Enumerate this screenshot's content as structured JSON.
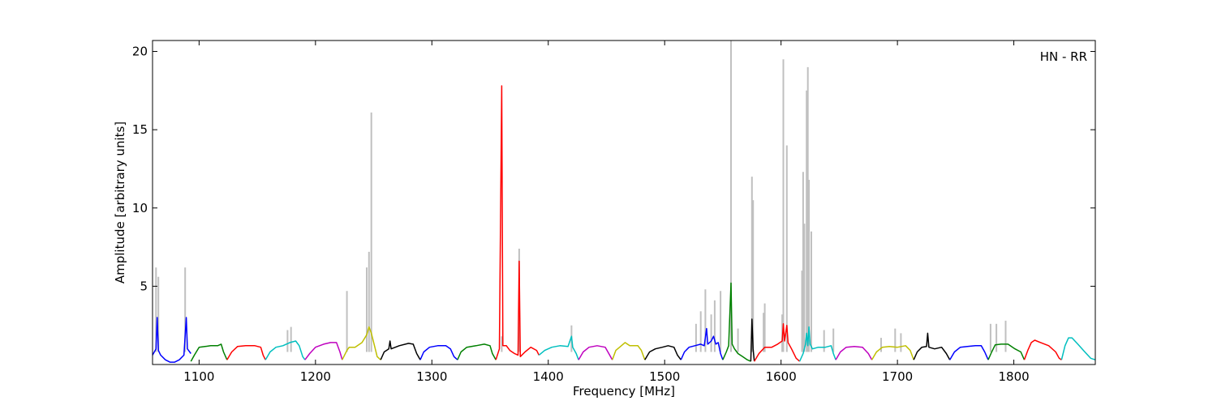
{
  "chart_data": {
    "type": "line",
    "title": "",
    "xlabel": "Frequency [MHz]",
    "ylabel": "Amplitude [arbitrary units]",
    "annotation": "HN - RR",
    "legend": "none",
    "grid": false,
    "xlim": [
      1060,
      1870
    ],
    "ylim": [
      0,
      20.7
    ],
    "x_ticks": [
      1100,
      1200,
      1300,
      1400,
      1500,
      1600,
      1700,
      1800
    ],
    "y_ticks": [
      5,
      10,
      15,
      20
    ],
    "background_color": "#c0c0c0",
    "background_spikes": [
      [
        1063,
        6.2
      ],
      [
        1065,
        5.6
      ],
      [
        1088,
        6.2
      ],
      [
        1176,
        2.2
      ],
      [
        1179,
        2.4
      ],
      [
        1227,
        4.7
      ],
      [
        1244,
        6.2
      ],
      [
        1246,
        7.2
      ],
      [
        1248,
        16.1
      ],
      [
        1360,
        1.8
      ],
      [
        1375,
        7.4
      ],
      [
        1420,
        2.5
      ],
      [
        1527,
        2.6
      ],
      [
        1531,
        3.4
      ],
      [
        1535,
        4.8
      ],
      [
        1540,
        3.2
      ],
      [
        1543,
        4.1
      ],
      [
        1548,
        4.7
      ],
      [
        1557,
        20.7
      ],
      [
        1563,
        2.3
      ],
      [
        1575,
        12.0
      ],
      [
        1576,
        10.5
      ],
      [
        1585,
        3.3
      ],
      [
        1586,
        3.9
      ],
      [
        1601,
        3.2
      ],
      [
        1602,
        19.5
      ],
      [
        1605,
        14.0
      ],
      [
        1618,
        6.0
      ],
      [
        1619,
        12.3
      ],
      [
        1620,
        9.0
      ],
      [
        1622,
        17.5
      ],
      [
        1623,
        19.0
      ],
      [
        1624,
        11.8
      ],
      [
        1626,
        8.5
      ],
      [
        1637,
        2.2
      ],
      [
        1645,
        2.3
      ],
      [
        1686,
        1.7
      ],
      [
        1698,
        2.3
      ],
      [
        1703,
        2.0
      ],
      [
        1780,
        2.6
      ],
      [
        1785,
        2.6
      ],
      [
        1793,
        2.8
      ]
    ],
    "series": [
      {
        "color": "#0000ff",
        "points": [
          [
            1060,
            0.6
          ],
          [
            1063,
            1.0
          ],
          [
            1064,
            3.0
          ],
          [
            1065,
            0.9
          ],
          [
            1067,
            0.6
          ],
          [
            1071,
            0.3
          ],
          [
            1075,
            0.15
          ],
          [
            1079,
            0.15
          ],
          [
            1083,
            0.3
          ],
          [
            1087,
            0.6
          ],
          [
            1089,
            3.0
          ],
          [
            1090,
            1.0
          ],
          [
            1093,
            0.7
          ]
        ]
      },
      {
        "color": "#008000",
        "points": [
          [
            1093,
            0.2
          ],
          [
            1096,
            0.6
          ],
          [
            1100,
            1.1
          ],
          [
            1105,
            1.15
          ],
          [
            1110,
            1.2
          ],
          [
            1116,
            1.2
          ],
          [
            1119,
            1.3
          ],
          [
            1121,
            0.8
          ],
          [
            1124,
            0.3
          ]
        ]
      },
      {
        "color": "#ff0000",
        "points": [
          [
            1124,
            0.3
          ],
          [
            1128,
            0.8
          ],
          [
            1133,
            1.15
          ],
          [
            1140,
            1.2
          ],
          [
            1148,
            1.2
          ],
          [
            1153,
            1.1
          ],
          [
            1155,
            0.6
          ],
          [
            1157,
            0.3
          ]
        ]
      },
      {
        "color": "#00bfbf",
        "points": [
          [
            1157,
            0.3
          ],
          [
            1161,
            0.8
          ],
          [
            1166,
            1.1
          ],
          [
            1172,
            1.2
          ],
          [
            1178,
            1.4
          ],
          [
            1183,
            1.5
          ],
          [
            1186,
            1.2
          ],
          [
            1189,
            0.5
          ],
          [
            1191,
            0.3
          ]
        ]
      },
      {
        "color": "#bf00bf",
        "points": [
          [
            1191,
            0.3
          ],
          [
            1195,
            0.7
          ],
          [
            1200,
            1.1
          ],
          [
            1207,
            1.3
          ],
          [
            1213,
            1.4
          ],
          [
            1218,
            1.4
          ],
          [
            1221,
            0.8
          ],
          [
            1223,
            0.3
          ]
        ]
      },
      {
        "color": "#bfbf00",
        "points": [
          [
            1223,
            0.3
          ],
          [
            1227,
            0.9
          ],
          [
            1229,
            1.1
          ],
          [
            1234,
            1.1
          ],
          [
            1240,
            1.4
          ],
          [
            1244,
            1.9
          ],
          [
            1246,
            2.4
          ],
          [
            1248,
            2.0
          ],
          [
            1250,
            1.4
          ],
          [
            1253,
            0.5
          ],
          [
            1256,
            0.3
          ]
        ]
      },
      {
        "color": "#000000",
        "points": [
          [
            1256,
            0.3
          ],
          [
            1259,
            0.8
          ],
          [
            1263,
            1.0
          ],
          [
            1264,
            1.5
          ],
          [
            1265,
            1.0
          ],
          [
            1272,
            1.2
          ],
          [
            1280,
            1.35
          ],
          [
            1284,
            1.3
          ],
          [
            1287,
            0.7
          ],
          [
            1290,
            0.3
          ]
        ]
      },
      {
        "color": "#0000ff",
        "points": [
          [
            1290,
            0.3
          ],
          [
            1293,
            0.8
          ],
          [
            1298,
            1.1
          ],
          [
            1305,
            1.2
          ],
          [
            1312,
            1.2
          ],
          [
            1316,
            1.0
          ],
          [
            1319,
            0.5
          ],
          [
            1322,
            0.3
          ]
        ]
      },
      {
        "color": "#008000",
        "points": [
          [
            1322,
            0.3
          ],
          [
            1325,
            0.8
          ],
          [
            1330,
            1.1
          ],
          [
            1338,
            1.2
          ],
          [
            1345,
            1.3
          ],
          [
            1350,
            1.2
          ],
          [
            1352,
            0.7
          ],
          [
            1355,
            0.3
          ]
        ]
      },
      {
        "color": "#ff0000",
        "points": [
          [
            1355,
            0.3
          ],
          [
            1358,
            1.0
          ],
          [
            1360,
            17.8
          ],
          [
            1361,
            1.2
          ],
          [
            1364,
            1.2
          ],
          [
            1367,
            0.9
          ],
          [
            1371,
            0.7
          ],
          [
            1374,
            0.6
          ],
          [
            1375,
            6.6
          ],
          [
            1376,
            0.5
          ],
          [
            1380,
            0.8
          ],
          [
            1385,
            1.1
          ],
          [
            1390,
            0.9
          ],
          [
            1392,
            0.6
          ]
        ]
      },
      {
        "color": "#00bfbf",
        "points": [
          [
            1392,
            0.6
          ],
          [
            1397,
            0.9
          ],
          [
            1403,
            1.1
          ],
          [
            1410,
            1.2
          ],
          [
            1417,
            1.15
          ],
          [
            1420,
            1.8
          ],
          [
            1421,
            1.1
          ],
          [
            1424,
            0.7
          ],
          [
            1426,
            0.3
          ]
        ]
      },
      {
        "color": "#bf00bf",
        "points": [
          [
            1426,
            0.3
          ],
          [
            1430,
            0.8
          ],
          [
            1435,
            1.1
          ],
          [
            1442,
            1.2
          ],
          [
            1449,
            1.1
          ],
          [
            1452,
            0.7
          ],
          [
            1455,
            0.3
          ]
        ]
      },
      {
        "color": "#bfbf00",
        "points": [
          [
            1455,
            0.3
          ],
          [
            1458,
            0.9
          ],
          [
            1462,
            1.15
          ],
          [
            1466,
            1.4
          ],
          [
            1470,
            1.2
          ],
          [
            1477,
            1.2
          ],
          [
            1480,
            0.9
          ],
          [
            1483,
            0.3
          ]
        ]
      },
      {
        "color": "#000000",
        "points": [
          [
            1483,
            0.3
          ],
          [
            1487,
            0.8
          ],
          [
            1492,
            1.0
          ],
          [
            1498,
            1.1
          ],
          [
            1503,
            1.2
          ],
          [
            1508,
            1.1
          ],
          [
            1511,
            0.6
          ],
          [
            1514,
            0.3
          ]
        ]
      },
      {
        "color": "#0000ff",
        "points": [
          [
            1514,
            0.3
          ],
          [
            1517,
            0.8
          ],
          [
            1521,
            1.1
          ],
          [
            1526,
            1.2
          ],
          [
            1531,
            1.3
          ],
          [
            1534,
            1.2
          ],
          [
            1536,
            2.3
          ],
          [
            1537,
            1.3
          ],
          [
            1540,
            1.5
          ],
          [
            1542,
            1.8
          ],
          [
            1544,
            1.3
          ],
          [
            1546,
            1.4
          ],
          [
            1548,
            0.7
          ],
          [
            1550,
            0.3
          ]
        ]
      },
      {
        "color": "#008000",
        "points": [
          [
            1550,
            0.3
          ],
          [
            1553,
            0.8
          ],
          [
            1555,
            1.2
          ],
          [
            1557,
            5.2
          ],
          [
            1558,
            1.3
          ],
          [
            1560,
            1.0
          ],
          [
            1563,
            0.7
          ],
          [
            1567,
            0.5
          ],
          [
            1571,
            0.3
          ],
          [
            1574,
            0.2
          ]
        ]
      },
      {
        "color": "#000000",
        "points": [
          [
            1574,
            0.2
          ],
          [
            1575,
            2.9
          ],
          [
            1576,
            1.0
          ],
          [
            1577,
            0.2
          ]
        ]
      },
      {
        "color": "#ff0000",
        "points": [
          [
            1577,
            0.2
          ],
          [
            1581,
            0.7
          ],
          [
            1586,
            1.1
          ],
          [
            1592,
            1.1
          ],
          [
            1597,
            1.3
          ],
          [
            1601,
            1.5
          ],
          [
            1602,
            2.6
          ],
          [
            1603,
            1.5
          ],
          [
            1605,
            2.5
          ],
          [
            1606,
            1.4
          ],
          [
            1609,
            1.0
          ],
          [
            1613,
            0.4
          ],
          [
            1616,
            0.2
          ]
        ]
      },
      {
        "color": "#00bfbf",
        "points": [
          [
            1616,
            0.2
          ],
          [
            1619,
            0.7
          ],
          [
            1621,
            1.3
          ],
          [
            1622,
            2.0
          ],
          [
            1623,
            1.2
          ],
          [
            1624,
            2.4
          ],
          [
            1625,
            1.3
          ],
          [
            1627,
            1.0
          ],
          [
            1632,
            1.1
          ],
          [
            1638,
            1.1
          ],
          [
            1643,
            1.2
          ],
          [
            1645,
            0.7
          ],
          [
            1647,
            0.3
          ]
        ]
      },
      {
        "color": "#bf00bf",
        "points": [
          [
            1647,
            0.3
          ],
          [
            1651,
            0.8
          ],
          [
            1656,
            1.1
          ],
          [
            1663,
            1.15
          ],
          [
            1670,
            1.1
          ],
          [
            1675,
            0.7
          ],
          [
            1678,
            0.3
          ]
        ]
      },
      {
        "color": "#bfbf00",
        "points": [
          [
            1678,
            0.3
          ],
          [
            1682,
            0.8
          ],
          [
            1687,
            1.1
          ],
          [
            1693,
            1.15
          ],
          [
            1700,
            1.1
          ],
          [
            1707,
            1.2
          ],
          [
            1711,
            0.9
          ],
          [
            1714,
            0.3
          ]
        ]
      },
      {
        "color": "#000000",
        "points": [
          [
            1714,
            0.3
          ],
          [
            1717,
            0.8
          ],
          [
            1721,
            1.1
          ],
          [
            1725,
            1.15
          ],
          [
            1726,
            2.0
          ],
          [
            1727,
            1.1
          ],
          [
            1732,
            1.0
          ],
          [
            1738,
            1.1
          ],
          [
            1742,
            0.7
          ],
          [
            1745,
            0.3
          ]
        ]
      },
      {
        "color": "#0000ff",
        "points": [
          [
            1745,
            0.3
          ],
          [
            1749,
            0.8
          ],
          [
            1754,
            1.1
          ],
          [
            1760,
            1.15
          ],
          [
            1767,
            1.2
          ],
          [
            1772,
            1.2
          ],
          [
            1775,
            0.8
          ],
          [
            1778,
            0.3
          ]
        ]
      },
      {
        "color": "#008000",
        "points": [
          [
            1778,
            0.3
          ],
          [
            1781,
            0.8
          ],
          [
            1784,
            1.25
          ],
          [
            1789,
            1.3
          ],
          [
            1795,
            1.3
          ],
          [
            1801,
            1.0
          ],
          [
            1806,
            0.8
          ],
          [
            1809,
            0.3
          ]
        ]
      },
      {
        "color": "#ff0000",
        "points": [
          [
            1809,
            0.3
          ],
          [
            1812,
            0.9
          ],
          [
            1815,
            1.4
          ],
          [
            1818,
            1.55
          ],
          [
            1823,
            1.4
          ],
          [
            1830,
            1.2
          ],
          [
            1836,
            0.8
          ],
          [
            1839,
            0.4
          ],
          [
            1841,
            0.3
          ]
        ]
      },
      {
        "color": "#00bfbf",
        "points": [
          [
            1841,
            0.3
          ],
          [
            1844,
            1.2
          ],
          [
            1847,
            1.7
          ],
          [
            1850,
            1.7
          ],
          [
            1855,
            1.3
          ],
          [
            1861,
            0.8
          ],
          [
            1866,
            0.4
          ],
          [
            1870,
            0.3
          ]
        ]
      }
    ]
  }
}
